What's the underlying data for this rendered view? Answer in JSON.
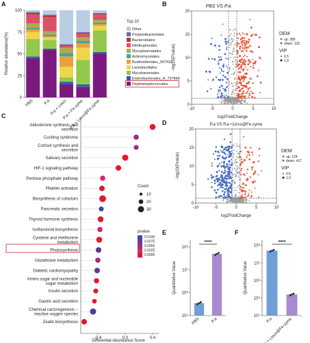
{
  "panels": {
    "a": "A",
    "b": "B",
    "c": "C",
    "d": "D",
    "e": "E",
    "f": "F"
  },
  "chart_data": [
    {
      "panel": "A",
      "type": "bar",
      "stacked": true,
      "ylabel": "Relative abundance(%)",
      "ylim": [
        0,
        100
      ],
      "yticks": [
        "0",
        "25",
        "50",
        "75",
        "100"
      ],
      "categories": [
        "PBS",
        "P.a",
        "P.a + Linco",
        "P.a + Fe-zyme",
        "P.a + Linco@Fe-zyme"
      ],
      "legend_title": "Top 10",
      "series": [
        {
          "name": "Peptostreptococcales",
          "color": "#7b1a7e",
          "values": [
            45,
            55,
            15,
            12,
            50
          ]
        },
        {
          "name": "Enterobacterales_A_737866",
          "color": "#2f5fa8",
          "values": [
            2,
            1,
            3,
            3,
            2
          ]
        },
        {
          "name": "Mycobacteriales",
          "color": "#93c84c",
          "values": [
            20,
            10,
            5,
            28,
            25
          ]
        },
        {
          "name": "Lactobacillales",
          "color": "#f1d548",
          "values": [
            8,
            3,
            12,
            14,
            5
          ]
        },
        {
          "name": "Burkholderiales_597432",
          "color": "#e9a23b",
          "values": [
            3,
            1,
            12,
            5,
            2
          ]
        },
        {
          "name": "Actinomycetales",
          "color": "#48a49a",
          "values": [
            2,
            2,
            4,
            3,
            2
          ]
        },
        {
          "name": "Mycoplasmatales",
          "color": "#b5a74f",
          "values": [
            5,
            4,
            6,
            4,
            3
          ]
        },
        {
          "name": "Nitriliruptorales",
          "color": "#d9526a",
          "values": [
            10,
            16,
            2,
            4,
            6
          ]
        },
        {
          "name": "Bacteroidales",
          "color": "#b23a3a",
          "values": [
            2,
            2,
            1,
            1,
            1
          ]
        },
        {
          "name": "Propionibacteriales",
          "color": "#6b6aa8",
          "values": [
            1,
            1,
            1,
            1,
            1
          ]
        },
        {
          "name": "Other",
          "color": "#b9cde4",
          "values": [
            2,
            5,
            39,
            25,
            3
          ]
        }
      ]
    },
    {
      "panel": "B",
      "type": "scatter",
      "title": "PBS VS P.a",
      "xlabel": "log2FoldChange",
      "ylabel": "−log10(Pvalue)",
      "xlim": [
        -10,
        10
      ],
      "ylim": [
        0,
        20
      ],
      "xticks": [
        "-10",
        "-5",
        "0",
        "5",
        "10"
      ],
      "yticks": [
        "0",
        "5",
        "10",
        "15",
        "20"
      ],
      "legend_title": "DEM",
      "legend_up": "up: 385",
      "legend_down": "down: 132",
      "vip_title": "VIP",
      "vip_values": [
        "0.5",
        "1.0"
      ]
    },
    {
      "panel": "C",
      "type": "scatter",
      "xlabel": "Differential Abundance Score",
      "xlim": [
        -0.65,
        0.5
      ],
      "xticks": [
        "-0.4",
        "0.0",
        "0.4"
      ],
      "size_legend_title": "Count",
      "size_legend": [
        "10",
        "20",
        "30"
      ],
      "color_legend_title": "pvalue",
      "color_legend": [
        "0.0100",
        "0.0075",
        "0.0050",
        "0.0025",
        "0.0000"
      ],
      "pathways": [
        {
          "name": "Aldosterone synthesis and secretion",
          "score": 0.4,
          "count": 28,
          "color": "#e0192e"
        },
        {
          "name": "Cushing syndrome",
          "score": 0.16,
          "count": 24,
          "color": "#9a2f7c"
        },
        {
          "name": "Cortisol synthesis and secretion",
          "score": 0.16,
          "count": 22,
          "color": "#9a2f7c"
        },
        {
          "name": "Salivary secretion",
          "score": 0.0,
          "count": 30,
          "color": "#e0192e"
        },
        {
          "name": "HIF-1 signaling pathway",
          "score": -0.1,
          "count": 26,
          "color": "#e0192e"
        },
        {
          "name": "Pentose phosphate pathway",
          "score": -0.33,
          "count": 24,
          "color": "#d8246a"
        },
        {
          "name": "Platelet activation",
          "score": -0.34,
          "count": 26,
          "color": "#e0192e"
        },
        {
          "name": "Biosynthesis of cofactors",
          "score": -0.33,
          "count": 34,
          "color": "#e0192e"
        },
        {
          "name": "Pancreatic secretion",
          "score": -0.35,
          "count": 22,
          "color": "#3b4aa0"
        },
        {
          "name": "Thyroid hormone synthesis",
          "score": -0.36,
          "count": 28,
          "color": "#e0192e"
        },
        {
          "name": "Isoflavonoid biosynthesis",
          "score": -0.37,
          "count": 24,
          "color": "#d8246a"
        },
        {
          "name": "Cysteine and methionine metabolism",
          "score": -0.38,
          "count": 28,
          "color": "#e0192e"
        },
        {
          "name": "Photosynthesis",
          "score": -0.39,
          "count": 26,
          "color": "#4c3d98"
        },
        {
          "name": "Glutathione metabolism",
          "score": -0.4,
          "count": 24,
          "color": "#b0287e"
        },
        {
          "name": "Diabetic cardiomyopathy",
          "score": -0.41,
          "count": 26,
          "color": "#5b3a96"
        },
        {
          "name": "Amino sugar and nucleotide sugar metabolism",
          "score": -0.42,
          "count": 24,
          "color": "#e0192e"
        },
        {
          "name": "Insulin secretion",
          "score": -0.43,
          "count": 22,
          "color": "#e0192e"
        },
        {
          "name": "Gastric acid secretion",
          "score": -0.45,
          "count": 20,
          "color": "#e0192e"
        },
        {
          "name": "Chemical carcinogenesis − reactive oxygen species",
          "score": -0.47,
          "count": 30,
          "color": "#4c3d98"
        },
        {
          "name": "Zeatin biosynthesis",
          "score": -0.6,
          "count": 26,
          "color": "#e0192e"
        }
      ]
    },
    {
      "panel": "D",
      "type": "scatter",
      "title": "P.a VS P.a +Linco@Fe-zyme",
      "xlabel": "log2FoldChange",
      "ylabel": "−log10(Pvalue)",
      "xlim": [
        -10,
        10
      ],
      "ylim": [
        0,
        20
      ],
      "xticks": [
        "-10",
        "-5",
        "0",
        "5",
        "10"
      ],
      "yticks": [
        "0",
        "5",
        "10",
        "15",
        "20"
      ],
      "legend_title": "DEM",
      "legend_up": "up: 124",
      "legend_down": "down: 417",
      "vip_title": "VIP",
      "vip_values": [
        "0.5",
        "1.0"
      ]
    },
    {
      "panel": "E",
      "type": "bar",
      "ylabel": "Quantitative Value",
      "yscale": "log",
      "yticks": [
        "10⁵",
        "10⁶",
        "10⁷",
        "10⁸"
      ],
      "categories": [
        "PBS",
        "P.a"
      ],
      "values": [
        350000.0,
        50000000.0
      ],
      "significance": "****",
      "colors": [
        "#6f9fd6",
        "#a88ad0"
      ]
    },
    {
      "panel": "F",
      "type": "bar",
      "ylabel": "Quantitative Value",
      "yscale": "log",
      "yticks": [
        "10⁴",
        "10⁵",
        "10⁶",
        "10⁷",
        "10⁸"
      ],
      "categories": [
        "P.a",
        "P.a + Linco@Fe-zyme"
      ],
      "values": [
        50000000.0,
        160000.0
      ],
      "significance": "****",
      "colors": [
        "#6f9fd6",
        "#a88ad0"
      ]
    }
  ]
}
